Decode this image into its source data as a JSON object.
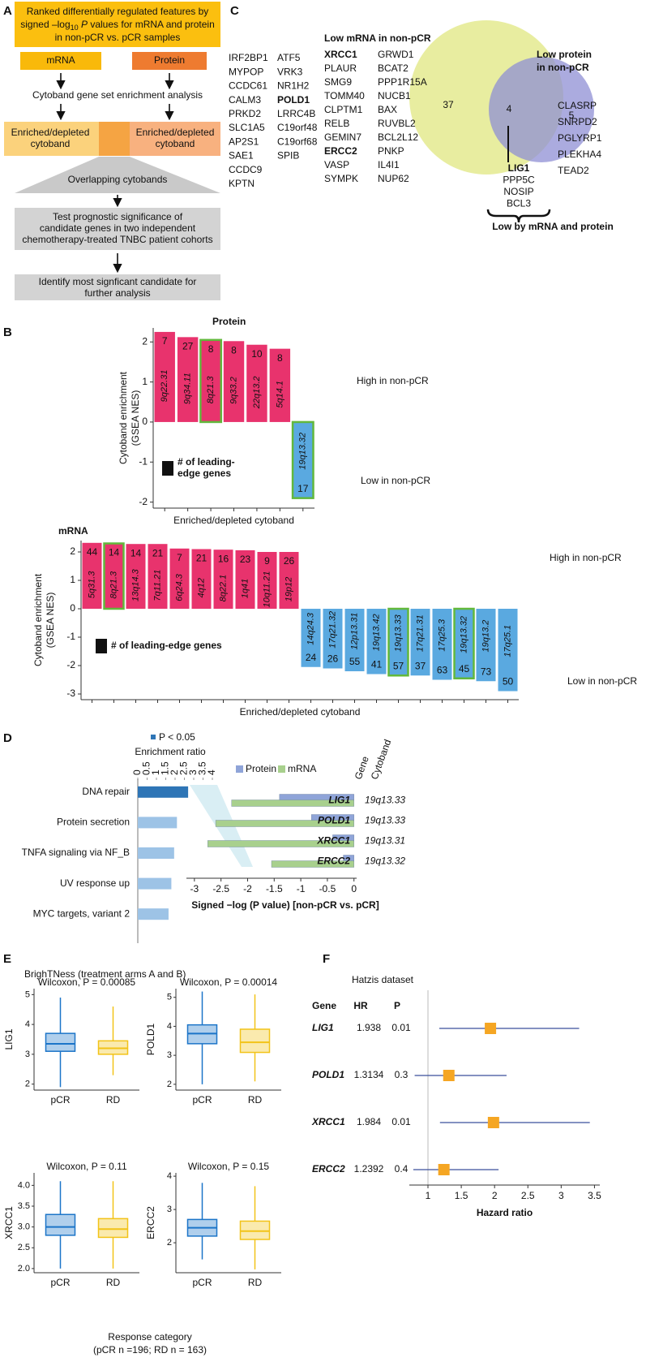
{
  "panel_labels": [
    "A",
    "B",
    "C",
    "D",
    "E",
    "F"
  ],
  "flowchart": {
    "intro": {
      "line1": "Ranked differentially regulated features by",
      "line2a": "signed –log",
      "line2sub": "10",
      "line2p": " P",
      "line2b": " values for mRNA and protein",
      "line3": "in non-pCR vs. pCR samples"
    },
    "mrna": "mRNA",
    "protein": "Protein",
    "analysis": "Cytoband gene set enrichment analysis",
    "cytoband_left": [
      "Enriched/depleted",
      "cytoband"
    ],
    "cytoband_right": [
      "Enriched/depleted",
      "cytoband"
    ],
    "overlap": "Overlapping cytobands",
    "test": [
      "Test prognostic significance of",
      "candidate genes in two independent",
      "chemotherapy-treated TNBC patient cohorts"
    ],
    "identify": [
      "Identify most signficant candidate for",
      "further analysis"
    ]
  },
  "venn": {
    "left_list": [
      [
        "IRF2BP1",
        "MYPOP",
        "CCDC61",
        "CALM3",
        "PRKD2",
        "SLC1A5",
        "AP2S1",
        "SAE1",
        "CCDC9",
        "KPTN"
      ],
      [
        "ATF5",
        "VRK3",
        "NR1H2",
        "POLD1",
        "LRRC4B",
        "C19orf48",
        "C19orf68",
        "SPIB"
      ]
    ],
    "left_bold": [
      [],
      [
        3
      ]
    ],
    "mrna_title": "Low mRNA in non-pCR",
    "mrna_list": [
      [
        "XRCC1",
        "PLAUR",
        "SMG9",
        "TOMM40",
        "CLPTM1",
        "RELB",
        "GEMIN7",
        "ERCC2",
        "VASP",
        "SYMPK"
      ],
      [
        "GRWD1",
        "BCAT2",
        "PPP1R15A",
        "NUCB1",
        "BAX",
        "RUVBL2",
        "BCL2L12",
        "PNKP",
        "IL4I1",
        "NUP62"
      ]
    ],
    "mrna_bold": [
      [
        0,
        7
      ],
      []
    ],
    "mrna_only": 37,
    "both": 4,
    "protein_only": 5,
    "protein_title": [
      "Low protein",
      "in non-pCR"
    ],
    "protein_list": [
      "CLASRP",
      "SNRPD2",
      "PGLYRP1",
      "PLEKHA4",
      "TEAD2"
    ],
    "both_list": [
      "LIG1",
      "PPP5C",
      "NOSIP",
      "BCL3"
    ],
    "both_highlight": [
      0
    ],
    "both_title": "Low by mRNA and protein",
    "mrna_color": "#e6eb96",
    "protein_color": "#8f8fd4",
    "highlight_color": "#8e3fa3"
  },
  "boxplot_panel": {
    "title": "BrighTNess (treatment arms A and B)",
    "xlabel": "Response category",
    "xlabel2": "(pCR n =196; RD n = 163)"
  },
  "chart_data": [
    {
      "type": "bar",
      "title": "Protein",
      "ylabel": [
        "Cytoband enrichment",
        "(GSEA NES)"
      ],
      "xlabel": "Enriched/depleted cytoband",
      "categories": [
        "9q22.31",
        "9q34.11",
        "8q21.3",
        "9q33.2",
        "22q13.2",
        "5q14.1",
        "19q13.32"
      ],
      "values": [
        2.25,
        2.12,
        2.05,
        2.02,
        1.93,
        1.83,
        -1.9
      ],
      "counts": [
        7,
        27,
        8,
        8,
        10,
        8,
        17
      ],
      "highlight": [
        false,
        false,
        true,
        false,
        false,
        false,
        true
      ],
      "color_positive": "#e8336d",
      "color_negative": "#5aa9e0",
      "highlight_color": "#62b83c",
      "ylim": [
        -2.15,
        2.35
      ],
      "yticks": [
        -2,
        -1,
        0,
        1,
        2
      ],
      "annotations": [
        "High in non-pCR",
        "Low in non-pCR"
      ],
      "legend_symbol": "N",
      "legend": [
        "# of leading-",
        "edge genes"
      ]
    },
    {
      "type": "bar",
      "title": "mRNA",
      "ylabel": [
        "Cytoband enrichment",
        "(GSEA NES)"
      ],
      "xlabel": "Enriched/depleted cytoband",
      "categories": [
        "5q31.3",
        "8q21.3",
        "13q14.3",
        "7q11.21",
        "6q24.3",
        "4q12",
        "8q22.1",
        "1q41",
        "10q11.21",
        "19p12",
        "14q24.3",
        "17q21.32",
        "12p13.31",
        "19q13.42",
        "19q13.33",
        "17q21.31",
        "17q25.3",
        "19q13.32",
        "19q13.2",
        "17q25.1"
      ],
      "values": [
        2.32,
        2.3,
        2.28,
        2.28,
        2.12,
        2.1,
        2.08,
        2.06,
        2.0,
        2.0,
        -2.05,
        -2.1,
        -2.2,
        -2.3,
        -2.35,
        -2.35,
        -2.5,
        -2.45,
        -2.55,
        -2.9
      ],
      "counts": [
        44,
        14,
        14,
        21,
        7,
        21,
        16,
        23,
        9,
        26,
        24,
        26,
        55,
        41,
        57,
        37,
        63,
        45,
        73,
        50
      ],
      "highlight": [
        false,
        true,
        false,
        false,
        false,
        false,
        false,
        false,
        false,
        false,
        false,
        false,
        false,
        false,
        true,
        false,
        false,
        true,
        false,
        false
      ],
      "color_positive": "#e8336d",
      "color_negative": "#5aa9e0",
      "highlight_color": "#62b83c",
      "ylim": [
        -3.2,
        2.4
      ],
      "yticks": [
        -3,
        -2,
        -1,
        0,
        1,
        2
      ],
      "annotations": [
        "High in non-pCR",
        "Low in non-pCR"
      ],
      "legend_symbol": "N",
      "legend": [
        "# of leading-edge genes"
      ]
    },
    {
      "type": "hbar",
      "legend": "P < 0.05",
      "xlabel": "Enrichment ratio",
      "categories": [
        "DNA repair",
        "Protein secretion",
        "TNFA signaling via NF_B",
        "UV response up",
        "MYC targets, variant 2"
      ],
      "values": [
        2.7,
        2.1,
        1.95,
        1.8,
        1.65
      ],
      "significant": [
        true,
        false,
        false,
        false,
        false
      ],
      "color": "#9dc3e6",
      "significant_color": "#2e75b6",
      "xlim": [
        0,
        4
      ],
      "xticks": [
        0,
        0.5,
        1,
        1.5,
        2,
        2.5,
        3,
        3.5,
        4
      ]
    },
    {
      "type": "diverging_hbar",
      "gene_header": "Gene",
      "cytoband_header": "Cytoband",
      "categories": [
        "LIG1",
        "POLD1",
        "XRCC1",
        "ERCC2"
      ],
      "cytobands": [
        "19q13.33",
        "19q13.33",
        "19q13.31",
        "19q13.32"
      ],
      "series": [
        {
          "name": "Protein",
          "color": "#8fa4d8",
          "values": [
            -1.4,
            -0.8,
            -0.4,
            -0.2
          ]
        },
        {
          "name": "mRNA",
          "color": "#a8d08d",
          "values": [
            -2.3,
            -2.6,
            -2.75,
            -1.55
          ]
        }
      ],
      "xlabel": "Signed −log (P value) [non-pCR vs. pCR]",
      "xlim": [
        -3.15,
        0.05
      ],
      "xticks": [
        -3,
        -2.5,
        -2,
        -1.5,
        -1,
        -0.5,
        0
      ]
    },
    {
      "type": "box",
      "title": "Wilcoxon, P = 0.00085",
      "ylabel": "LIG1",
      "categories": [
        "pCR",
        "RD"
      ],
      "colors": [
        "#1c75c8",
        "#f2c318"
      ],
      "min": [
        1.9,
        2.3
      ],
      "q1": [
        3.1,
        3.0
      ],
      "median": [
        3.35,
        3.2
      ],
      "q3": [
        3.7,
        3.45
      ],
      "max": [
        4.9,
        4.6
      ],
      "ylim": [
        1.8,
        5.2
      ],
      "yticks": [
        2,
        3,
        4,
        5
      ]
    },
    {
      "type": "box",
      "title": "Wilcoxon, P = 0.00014",
      "ylabel": "POLD1",
      "categories": [
        "pCR",
        "RD"
      ],
      "colors": [
        "#1c75c8",
        "#f2c318"
      ],
      "min": [
        2.0,
        2.1
      ],
      "q1": [
        3.4,
        3.1
      ],
      "median": [
        3.75,
        3.45
      ],
      "q3": [
        4.05,
        3.9
      ],
      "max": [
        5.2,
        5.1
      ],
      "ylim": [
        1.8,
        5.3
      ],
      "yticks": [
        2,
        3,
        4,
        5
      ]
    },
    {
      "type": "box",
      "title": "Wilcoxon, P = 0.11",
      "ylabel": "XRCC1",
      "categories": [
        "pCR",
        "RD"
      ],
      "colors": [
        "#1c75c8",
        "#f2c318"
      ],
      "min": [
        2.0,
        2.0
      ],
      "q1": [
        2.8,
        2.75
      ],
      "median": [
        3.0,
        2.95
      ],
      "q3": [
        3.3,
        3.2
      ],
      "max": [
        4.1,
        4.1
      ],
      "ylim": [
        1.9,
        4.3
      ],
      "yticks": [
        {
          "value": 2,
          "label": "2.0"
        },
        2.5,
        {
          "value": 3,
          "label": "3.0"
        },
        3.5,
        {
          "value": 4,
          "label": "4.0"
        }
      ]
    },
    {
      "type": "box",
      "title": "Wilcoxon, P = 0.15",
      "ylabel": "ERCC2",
      "categories": [
        "pCR",
        "RD"
      ],
      "colors": [
        "#1c75c8",
        "#f2c318"
      ],
      "min": [
        1.5,
        1.2
      ],
      "q1": [
        2.2,
        2.1
      ],
      "median": [
        2.45,
        2.35
      ],
      "q3": [
        2.7,
        2.65
      ],
      "max": [
        3.8,
        3.7
      ],
      "ylim": [
        1.1,
        4.1
      ],
      "yticks": [
        2,
        3,
        4
      ]
    },
    {
      "type": "forest",
      "title": "Hatzis dataset",
      "headers": [
        "Gene",
        "HR",
        "P"
      ],
      "categories": [
        "LIG1",
        "POLD1",
        "XRCC1",
        "ERCC2"
      ],
      "values": [
        1.938,
        1.3134,
        1.984,
        1.2392
      ],
      "ci_low": [
        1.17,
        0.8,
        1.18,
        0.78
      ],
      "ci_high": [
        3.27,
        2.18,
        3.43,
        2.06
      ],
      "p_values": [
        0.01,
        0.3,
        0.01,
        0.4
      ],
      "color": "#f5a623",
      "ci_color": "#3b4f9c",
      "xlabel": "Hazard ratio",
      "xlim": [
        0.72,
        3.58
      ],
      "xticks": [
        1,
        1.5,
        2,
        2.5,
        3,
        3.5
      ]
    }
  ]
}
